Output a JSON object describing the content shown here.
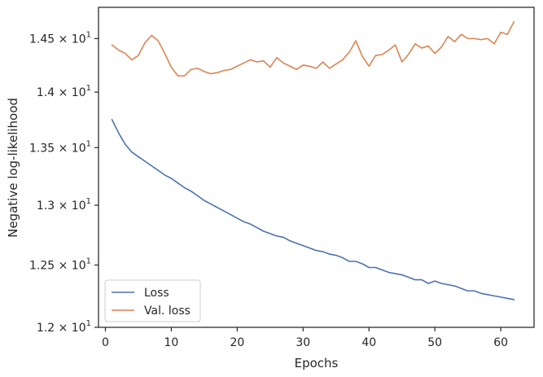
{
  "chart_data": {
    "type": "line",
    "title": "",
    "xlabel": "Epochs",
    "ylabel": "Negative log-likelihood",
    "xlim": [
      -1.05,
      65.05
    ],
    "ylim": [
      12.0,
      14.8
    ],
    "yscale": "log",
    "grid": false,
    "legend_position": "lower-left",
    "x_ticks": [
      0,
      10,
      20,
      30,
      40,
      50,
      60
    ],
    "y_ticks": [
      {
        "value": 12.0,
        "mantissa": "1.2",
        "base": "10",
        "exp": "1"
      },
      {
        "value": 12.5,
        "mantissa": "1.25",
        "base": "10",
        "exp": "1"
      },
      {
        "value": 13.0,
        "mantissa": "1.3",
        "base": "10",
        "exp": "1"
      },
      {
        "value": 13.5,
        "mantissa": "1.35",
        "base": "10",
        "exp": "1"
      },
      {
        "value": 14.0,
        "mantissa": "1.4",
        "base": "10",
        "exp": "1"
      },
      {
        "value": 14.5,
        "mantissa": "1.45",
        "base": "10",
        "exp": "1"
      }
    ],
    "series": [
      {
        "name": "Loss",
        "color": "#4c72b0",
        "x": [
          1,
          2,
          3,
          4,
          5,
          6,
          7,
          8,
          9,
          10,
          11,
          12,
          13,
          14,
          15,
          16,
          17,
          18,
          19,
          20,
          21,
          22,
          23,
          24,
          25,
          26,
          27,
          28,
          29,
          30,
          31,
          32,
          33,
          34,
          35,
          36,
          37,
          38,
          39,
          40,
          41,
          42,
          43,
          44,
          45,
          46,
          47,
          48,
          49,
          50,
          51,
          52,
          53,
          54,
          55,
          56,
          57,
          58,
          59,
          60,
          61,
          62
        ],
        "y": [
          13.75,
          13.63,
          13.53,
          13.46,
          13.42,
          13.38,
          13.34,
          13.3,
          13.26,
          13.23,
          13.19,
          13.15,
          13.12,
          13.08,
          13.04,
          13.01,
          12.98,
          12.95,
          12.92,
          12.89,
          12.86,
          12.84,
          12.81,
          12.78,
          12.76,
          12.74,
          12.73,
          12.7,
          12.68,
          12.66,
          12.64,
          12.62,
          12.61,
          12.59,
          12.58,
          12.56,
          12.53,
          12.53,
          12.51,
          12.48,
          12.48,
          12.46,
          12.44,
          12.43,
          12.42,
          12.4,
          12.38,
          12.38,
          12.35,
          12.37,
          12.35,
          12.34,
          12.33,
          12.31,
          12.29,
          12.29,
          12.27,
          12.26,
          12.25,
          12.24,
          12.23,
          12.22
        ]
      },
      {
        "name": "Val. loss",
        "color": "#dd8452",
        "x": [
          1,
          2,
          3,
          4,
          5,
          6,
          7,
          8,
          9,
          10,
          11,
          12,
          13,
          14,
          15,
          16,
          17,
          18,
          19,
          20,
          21,
          22,
          23,
          24,
          25,
          26,
          27,
          28,
          29,
          30,
          31,
          32,
          33,
          34,
          35,
          36,
          37,
          38,
          39,
          40,
          41,
          42,
          43,
          44,
          45,
          46,
          47,
          48,
          49,
          50,
          51,
          52,
          53,
          54,
          55,
          56,
          57,
          58,
          59,
          60,
          61,
          62
        ],
        "y": [
          14.44,
          14.39,
          14.36,
          14.3,
          14.34,
          14.46,
          14.53,
          14.48,
          14.36,
          14.23,
          14.15,
          14.15,
          14.21,
          14.22,
          14.19,
          14.17,
          14.18,
          14.2,
          14.21,
          14.24,
          14.27,
          14.3,
          14.28,
          14.29,
          14.23,
          14.32,
          14.27,
          14.24,
          14.21,
          14.25,
          14.24,
          14.22,
          14.28,
          14.22,
          14.26,
          14.3,
          14.37,
          14.48,
          14.33,
          14.24,
          14.34,
          14.35,
          14.39,
          14.44,
          14.28,
          14.35,
          14.45,
          14.41,
          14.43,
          14.36,
          14.42,
          14.52,
          14.47,
          14.54,
          14.5,
          14.5,
          14.49,
          14.5,
          14.45,
          14.56,
          14.54,
          14.66
        ]
      }
    ]
  }
}
